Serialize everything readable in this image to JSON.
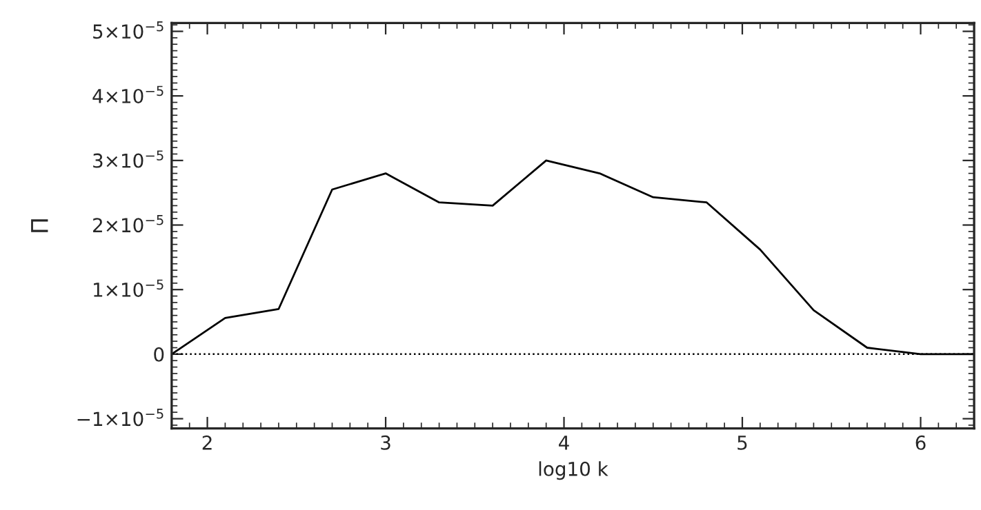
{
  "chart_data": {
    "type": "line",
    "xlabel": "log10 k",
    "ylabel": "Π",
    "x": [
      1.8,
      2.1,
      2.4,
      2.7,
      3.0,
      3.3,
      3.6,
      3.9,
      4.2,
      4.5,
      4.8,
      5.1,
      5.4,
      5.7,
      6.0,
      6.3
    ],
    "series": [
      {
        "color": "#000000",
        "values": [
          0.0,
          5.6e-06,
          7e-06,
          2.55e-05,
          2.8e-05,
          2.35e-05,
          2.3e-05,
          3e-05,
          2.8e-05,
          2.43e-05,
          2.35e-05,
          1.62e-05,
          6.8e-06,
          1e-06,
          0.0,
          0.0
        ]
      }
    ],
    "xlim": [
      1.8,
      6.3
    ],
    "xticks": [
      2,
      3,
      4,
      5,
      6
    ],
    "ylim": [
      -1.15e-05,
      5.13e-05
    ],
    "yticks": [
      {
        "value": -1e-05,
        "label": "−1×10$^{−5}$"
      },
      {
        "value": 0,
        "label": "0"
      },
      {
        "value": 1e-05,
        "label": "1×10$^{−5}$"
      },
      {
        "value": 2e-05,
        "label": "2×10$^{−5}$"
      },
      {
        "value": 3e-05,
        "label": "3×10$^{−5}$"
      },
      {
        "value": 4e-05,
        "label": "4×10$^{−5}$"
      },
      {
        "value": 5e-05,
        "label": "5×10$^{−5}$"
      }
    ],
    "ref_lines": [
      {
        "axis": "y",
        "value": 0,
        "color": "#000000",
        "line_style": "dotted"
      }
    ],
    "grid": false,
    "legend": false,
    "marker": "none",
    "line_style": "solid"
  }
}
